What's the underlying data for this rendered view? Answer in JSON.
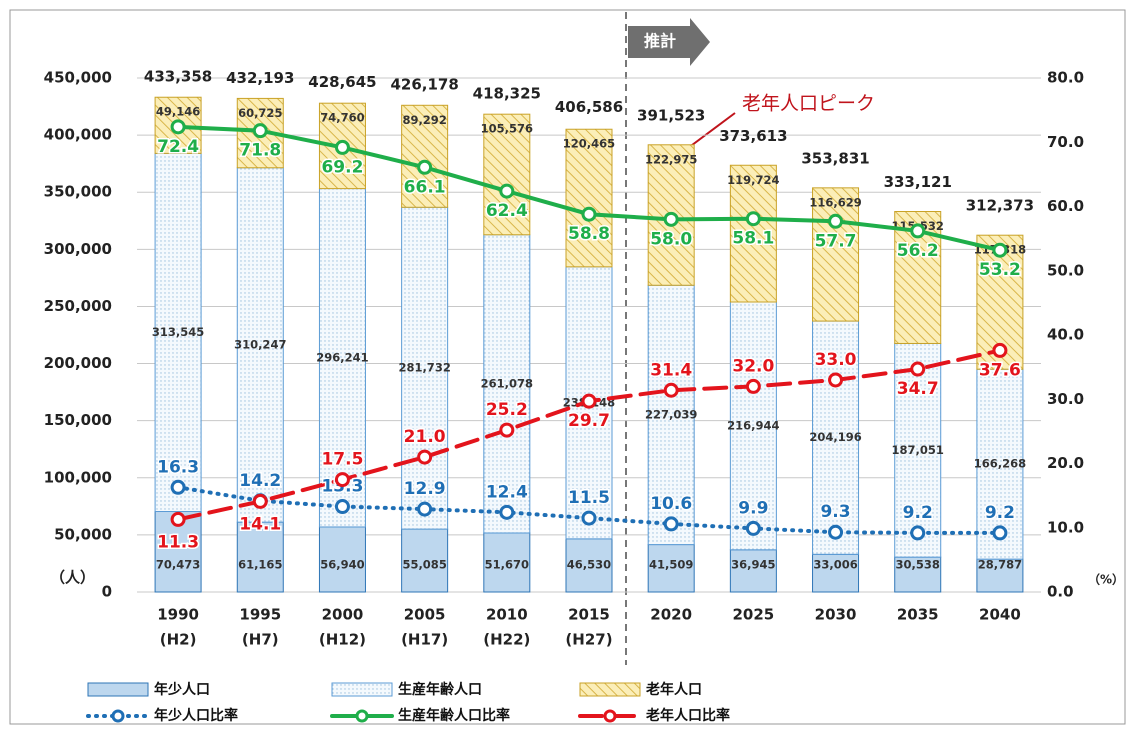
{
  "chart_data": {
    "type": "bar",
    "stacked": true,
    "categories": [
      "1990",
      "1995",
      "2000",
      "2005",
      "2010",
      "2015",
      "2020",
      "2025",
      "2030",
      "2035",
      "2040"
    ],
    "category_sublabels": [
      "(H2)",
      "(H7)",
      "(H12)",
      "(H17)",
      "(H22)",
      "(H27)",
      null,
      null,
      null,
      null,
      null
    ],
    "totals": [
      433358,
      432193,
      428645,
      426178,
      418325,
      406586,
      391523,
      373613,
      353831,
      333121,
      312373
    ],
    "total_labels": [
      "433,358",
      "432,193",
      "428,645",
      "426,178",
      "418,325",
      "406,586",
      "391,523",
      "373,613",
      "353,831",
      "333,121",
      "312,373"
    ],
    "series": [
      {
        "name": "年少人口",
        "type": "bar",
        "color": "#bdd7ee",
        "values": [
          70473,
          61165,
          56940,
          55085,
          51670,
          46530,
          41509,
          36945,
          33006,
          30538,
          28787
        ],
        "value_labels": [
          "70,473",
          "61,165",
          "56,940",
          "55,085",
          "51,670",
          "46,530",
          "41,509",
          "36,945",
          "33,006",
          "30,538",
          "28,787"
        ]
      },
      {
        "name": "生産年齢人口",
        "type": "bar",
        "color": "#eef5fb",
        "values": [
          313545,
          310247,
          296241,
          281732,
          261078,
          238148,
          227039,
          216944,
          204196,
          187051,
          166268
        ],
        "value_labels": [
          "313,545",
          "310,247",
          "296,241",
          "281,732",
          "261,078",
          "238,148",
          "227,039",
          "216,944",
          "204,196",
          "187,051",
          "166,268"
        ]
      },
      {
        "name": "老年人口",
        "type": "bar",
        "color": "#f5dc8c",
        "values": [
          49146,
          60725,
          74760,
          89292,
          105576,
          120465,
          122975,
          119724,
          116629,
          115532,
          117318
        ],
        "value_labels": [
          "49,146",
          "60,725",
          "74,760",
          "89,292",
          "105,576",
          "120,465",
          "122,975",
          "119,724",
          "116,629",
          "115,532",
          "117,318"
        ]
      },
      {
        "name": "年少人口比率",
        "type": "line",
        "axis": "y2",
        "line_style": "dotted",
        "color": "#1f6fb5",
        "values": [
          16.3,
          14.2,
          13.3,
          12.9,
          12.4,
          11.5,
          10.6,
          9.9,
          9.3,
          9.2,
          9.2
        ],
        "value_labels": [
          "16.3",
          "14.2",
          "13.3",
          "12.9",
          "12.4",
          "11.5",
          "10.6",
          "9.9",
          "9.3",
          "9.2",
          "9.2"
        ]
      },
      {
        "name": "生産年齢人口比率",
        "type": "line",
        "axis": "y2",
        "line_style": "solid",
        "color": "#1fae4a",
        "values": [
          72.4,
          71.8,
          69.2,
          66.1,
          62.4,
          58.8,
          58.0,
          58.1,
          57.7,
          56.2,
          53.2
        ],
        "value_labels": [
          "72.4",
          "71.8",
          "69.2",
          "66.1",
          "62.4",
          "58.8",
          "58.0",
          "58.1",
          "57.7",
          "56.2",
          "53.2"
        ]
      },
      {
        "name": "老年人口比率",
        "type": "line",
        "axis": "y2",
        "line_style": "dashed",
        "color": "#e3141c",
        "values": [
          11.3,
          14.1,
          17.5,
          21.0,
          25.2,
          29.7,
          31.4,
          32.0,
          33.0,
          34.7,
          37.6
        ],
        "value_labels": [
          "11.3",
          "14.1",
          "17.5",
          "21.0",
          "25.2",
          "29.7",
          "31.4",
          "32.0",
          "33.0",
          "34.7",
          "37.6"
        ]
      }
    ],
    "ylim": [
      0,
      450000
    ],
    "yticks": [
      0,
      {
        "value": 50000,
        "label": "50,000"
      },
      {
        "value": 100000,
        "label": "100,000"
      },
      {
        "value": 150000,
        "label": "150,000"
      },
      {
        "value": 200000,
        "label": "200,000"
      },
      {
        "value": 250000,
        "label": "250,000"
      },
      {
        "value": 300000,
        "label": "300,000"
      },
      {
        "value": 350000,
        "label": "350,000"
      },
      {
        "value": 400000,
        "label": "400,000"
      },
      {
        "value": 450000,
        "label": "450,000"
      }
    ],
    "y2lim": [
      0,
      80
    ],
    "y2ticks": [
      {
        "value": 0,
        "label": "0.0"
      },
      {
        "value": 10,
        "label": "10.0"
      },
      {
        "value": 20,
        "label": "20.0"
      },
      {
        "value": 30,
        "label": "30.0"
      },
      {
        "value": 40,
        "label": "40.0"
      },
      {
        "value": 50,
        "label": "50.0"
      },
      {
        "value": 60,
        "label": "60.0"
      },
      {
        "value": 70,
        "label": "70.0"
      },
      {
        "value": 80,
        "label": "80.0"
      }
    ],
    "y_unit": "（人）",
    "y2_unit": "（%）",
    "grid": true,
    "projection_label": "推計",
    "peak_annotation": "老年人口ピーク"
  }
}
